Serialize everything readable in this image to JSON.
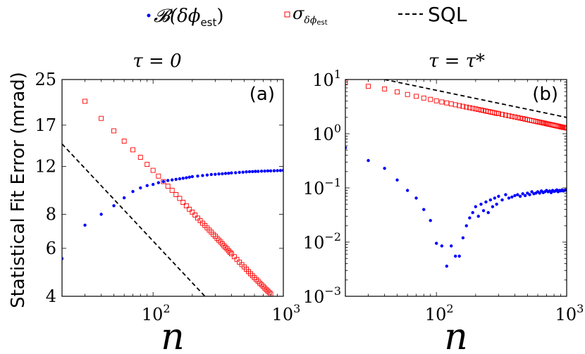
{
  "legend": {
    "placement": "top-center",
    "entries": [
      {
        "key": "bias",
        "label": "𝓑(δϕ",
        "sub": "est",
        "tail": ")",
        "color": "#0000ff",
        "marker": "dot"
      },
      {
        "key": "sigma",
        "label": "σ",
        "sub": "δϕ",
        "subsub": "est",
        "color": "#ff0000",
        "marker": "open-square"
      },
      {
        "key": "sql",
        "label": "SQL",
        "color": "#000000",
        "marker": "dashed-line"
      }
    ]
  },
  "shared_ylabel": "Statistical Fit Error (mrad)",
  "chart_data": [
    {
      "type": "scatter",
      "panel_label": "(a)",
      "title": "τ = 0",
      "xlabel": "n",
      "xscale": "log",
      "xlim": [
        20,
        1000
      ],
      "xticks": [
        {
          "value": 100,
          "base": "10",
          "exp": "2"
        },
        {
          "value": 1000,
          "base": "10",
          "exp": "3"
        }
      ],
      "yscale": "log",
      "ylim": [
        4,
        25
      ],
      "yticks": [
        {
          "value": 4,
          "label": "4"
        },
        {
          "value": 6,
          "label": "6"
        },
        {
          "value": 8,
          "label": "8"
        },
        {
          "value": 12,
          "label": "12"
        },
        {
          "value": 17,
          "label": "17"
        },
        {
          "value": 25,
          "label": "25"
        }
      ],
      "grid": false,
      "series": {
        "bias": {
          "x": [
            20,
            30,
            40,
            50,
            60,
            70,
            80,
            90,
            100,
            110,
            120,
            130,
            140,
            150,
            160,
            170,
            180,
            190,
            200,
            220,
            240,
            260,
            280,
            300,
            320,
            340,
            360,
            380,
            400,
            430,
            460,
            490,
            520,
            550,
            580,
            610,
            640,
            680,
            720,
            760,
            800,
            850,
            900,
            950,
            1000
          ],
          "y": [
            5.5,
            7.3,
            8.0,
            8.6,
            9.2,
            9.7,
            10.0,
            10.2,
            10.3,
            10.45,
            10.55,
            10.65,
            10.7,
            10.75,
            10.8,
            10.85,
            10.9,
            10.95,
            11.0,
            11.05,
            11.1,
            11.15,
            11.2,
            11.22,
            11.25,
            11.27,
            11.3,
            11.32,
            11.35,
            11.37,
            11.4,
            11.42,
            11.45,
            11.47,
            11.48,
            11.5,
            11.5,
            11.52,
            11.53,
            11.55,
            11.55,
            11.56,
            11.57,
            11.58,
            11.6
          ]
        },
        "sigma": {
          "x": [
            30,
            40,
            50,
            60,
            70,
            80,
            90,
            100,
            110,
            120,
            130,
            140,
            150,
            160,
            170,
            180,
            190,
            200,
            210,
            220,
            230,
            240,
            250,
            260,
            270,
            280,
            290,
            300,
            310,
            320,
            330,
            340,
            350,
            360,
            370,
            380,
            390,
            400,
            420,
            440,
            460,
            480,
            500,
            520,
            540,
            560,
            580,
            600,
            620,
            640,
            660,
            680,
            700,
            720,
            740,
            760,
            780,
            800
          ],
          "y": [
            20.8,
            18.0,
            16.2,
            14.85,
            13.8,
            12.95,
            12.2,
            11.6,
            11.05,
            10.55,
            10.15,
            9.8,
            9.45,
            9.15,
            8.85,
            8.6,
            8.35,
            8.15,
            7.95,
            7.75,
            7.58,
            7.42,
            7.28,
            7.13,
            7.0,
            6.88,
            6.75,
            6.65,
            6.53,
            6.43,
            6.33,
            6.23,
            6.13,
            6.05,
            5.97,
            5.88,
            5.8,
            5.73,
            5.59,
            5.46,
            5.34,
            5.23,
            5.13,
            5.03,
            4.93,
            4.84,
            4.76,
            4.68,
            4.61,
            4.54,
            4.47,
            4.41,
            4.35,
            4.29,
            4.23,
            4.18,
            4.13,
            4.08
          ]
        },
        "sql": {
          "x": [
            20,
            250
          ],
          "y": [
            14.5,
            4.0
          ]
        }
      }
    },
    {
      "type": "scatter",
      "panel_label": "(b)",
      "title": "τ = τ*",
      "xlabel": "n",
      "xscale": "log",
      "xlim": [
        20,
        1000
      ],
      "xticks": [
        {
          "value": 100,
          "base": "10",
          "exp": "2"
        },
        {
          "value": 1000,
          "base": "10",
          "exp": "3"
        }
      ],
      "yscale": "log",
      "ylim": [
        0.001,
        10
      ],
      "yticks": [
        {
          "value": 0.001,
          "base": "10",
          "exp": "−3"
        },
        {
          "value": 0.01,
          "base": "10",
          "exp": "−2"
        },
        {
          "value": 0.1,
          "base": "10",
          "exp": "−1"
        },
        {
          "value": 1,
          "base": "10",
          "exp": "0"
        },
        {
          "value": 10,
          "base": "10",
          "exp": "1"
        }
      ],
      "grid": false,
      "series": {
        "bias": {
          "x": [
            20,
            30,
            40,
            50,
            60,
            70,
            80,
            90,
            100,
            110,
            120,
            130,
            140,
            150,
            160,
            170,
            180,
            190,
            200,
            210,
            220,
            230,
            240,
            250,
            260,
            270,
            280,
            290,
            300,
            320,
            340,
            360,
            380,
            400,
            420,
            440,
            460,
            480,
            500,
            520,
            540,
            560,
            580,
            600,
            620,
            640,
            660,
            680,
            700,
            720,
            740,
            760,
            780,
            800,
            820,
            840,
            860,
            880,
            900,
            920,
            940,
            960,
            980,
            1000
          ],
          "y": [
            0.55,
            0.32,
            0.23,
            0.14,
            0.09,
            0.065,
            0.04,
            0.025,
            0.0095,
            0.0085,
            0.0036,
            0.0085,
            0.0055,
            0.0055,
            0.012,
            0.02,
            0.028,
            0.035,
            0.045,
            0.03,
            0.05,
            0.038,
            0.055,
            0.035,
            0.06,
            0.045,
            0.065,
            0.05,
            0.07,
            0.06,
            0.075,
            0.065,
            0.068,
            0.072,
            0.075,
            0.07,
            0.078,
            0.072,
            0.08,
            0.075,
            0.085,
            0.078,
            0.08,
            0.085,
            0.08,
            0.088,
            0.082,
            0.085,
            0.09,
            0.085,
            0.088,
            0.082,
            0.09,
            0.086,
            0.088,
            0.092,
            0.085,
            0.09,
            0.088,
            0.092,
            0.088,
            0.09,
            0.092,
            0.09
          ]
        },
        "sigma": {
          "x": [
            20,
            30,
            40,
            50,
            60,
            70,
            80,
            90,
            100,
            110,
            120,
            130,
            140,
            150,
            160,
            170,
            180,
            190,
            200,
            210,
            220,
            230,
            240,
            250,
            260,
            270,
            280,
            290,
            300,
            320,
            340,
            360,
            380,
            400,
            420,
            440,
            460,
            480,
            500,
            520,
            540,
            560,
            580,
            600,
            620,
            640,
            660,
            680,
            700,
            720,
            740,
            760,
            780,
            800,
            820,
            840,
            860,
            880,
            900,
            920,
            940,
            960,
            980,
            1000
          ],
          "y": [
            8.9,
            7.5,
            6.7,
            5.9,
            5.3,
            4.9,
            4.55,
            4.3,
            4.05,
            3.85,
            3.7,
            3.55,
            3.42,
            3.3,
            3.2,
            3.1,
            3.02,
            2.94,
            2.87,
            2.8,
            2.74,
            2.68,
            2.62,
            2.57,
            2.52,
            2.47,
            2.43,
            2.38,
            2.35,
            2.27,
            2.2,
            2.14,
            2.09,
            2.04,
            1.99,
            1.94,
            1.9,
            1.86,
            1.82,
            1.78,
            1.75,
            1.72,
            1.69,
            1.66,
            1.63,
            1.61,
            1.58,
            1.56,
            1.53,
            1.51,
            1.49,
            1.47,
            1.45,
            1.43,
            1.41,
            1.39,
            1.38,
            1.36,
            1.34,
            1.33,
            1.31,
            1.3,
            1.29,
            1.27
          ]
        },
        "sql": {
          "x": [
            40,
            1000
          ],
          "y": [
            10.0,
            2.0
          ]
        }
      }
    }
  ]
}
